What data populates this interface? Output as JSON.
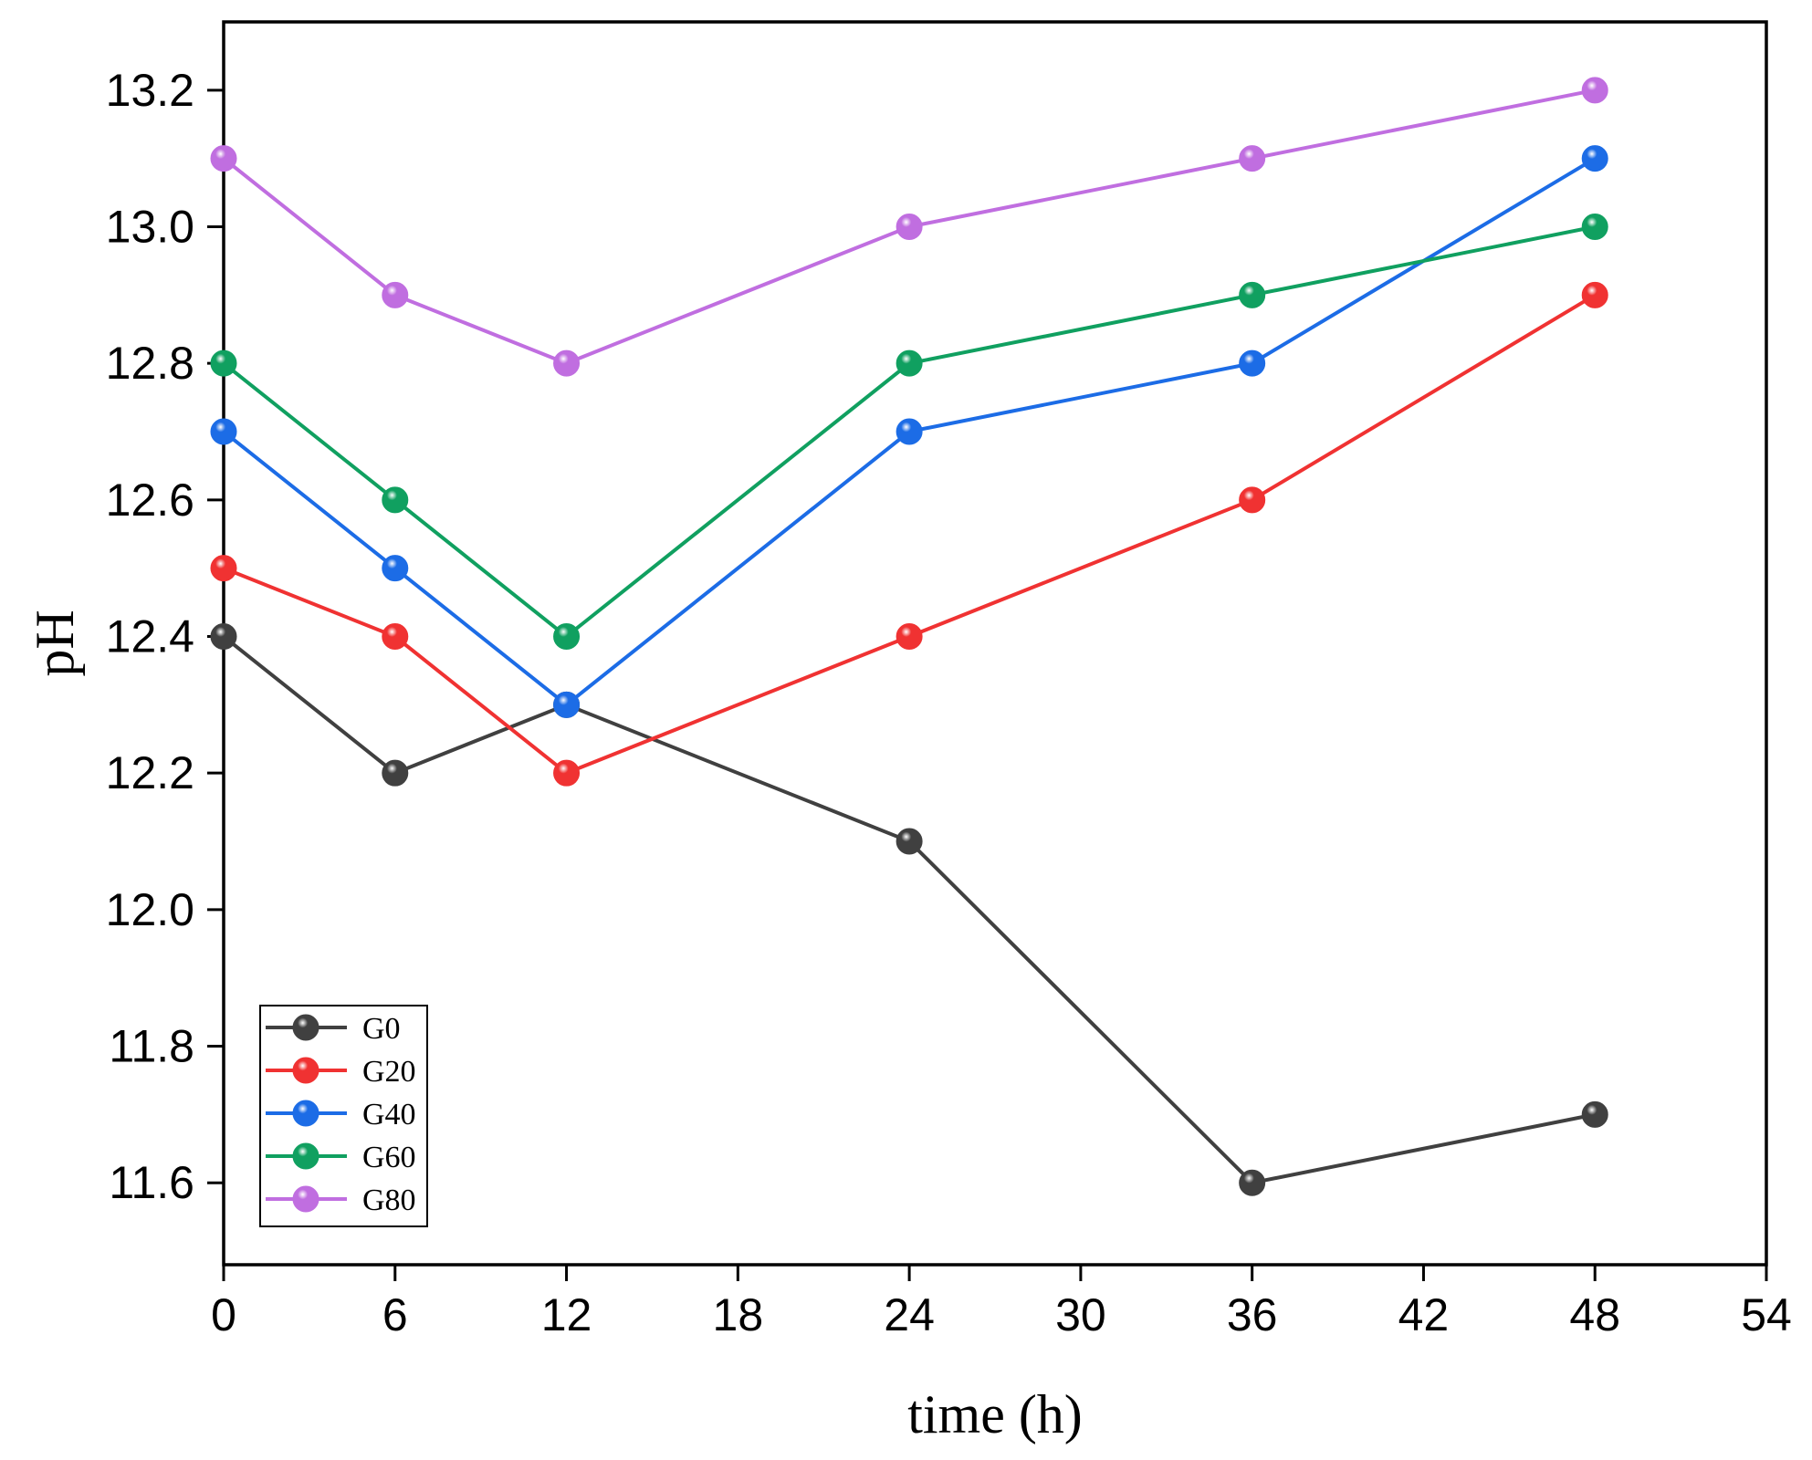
{
  "chart_data": {
    "type": "line",
    "title": "",
    "xlabel": "time (h)",
    "ylabel": "pH",
    "xlim": [
      0,
      54
    ],
    "ylim": [
      11.48,
      13.3
    ],
    "xticks": [
      0,
      6,
      12,
      18,
      24,
      30,
      36,
      42,
      48,
      54
    ],
    "yticks": [
      11.6,
      11.8,
      12.0,
      12.2,
      12.4,
      12.6,
      12.8,
      13.0,
      13.2
    ],
    "ytick_labels": [
      "11.6",
      "11.8",
      "12.0",
      "12.2",
      "12.4",
      "12.6",
      "12.8",
      "13.0",
      "13.2"
    ],
    "grid": false,
    "legend_position": "bottom-left",
    "x": [
      0,
      6,
      12,
      24,
      36,
      48
    ],
    "series": [
      {
        "name": "G0",
        "color": "#404040",
        "values": [
          12.4,
          12.2,
          12.3,
          12.1,
          11.6,
          11.7
        ]
      },
      {
        "name": "G20",
        "color": "#f03232",
        "values": [
          12.5,
          12.4,
          12.2,
          12.4,
          12.6,
          12.9
        ]
      },
      {
        "name": "G40",
        "color": "#1c6ce6",
        "values": [
          12.7,
          12.5,
          12.3,
          12.7,
          12.8,
          13.1
        ]
      },
      {
        "name": "G60",
        "color": "#10a060",
        "values": [
          12.8,
          12.6,
          12.4,
          12.8,
          12.9,
          13.0
        ]
      },
      {
        "name": "G80",
        "color": "#c06ee0",
        "values": [
          13.1,
          12.9,
          12.8,
          13.0,
          13.1,
          13.2
        ]
      }
    ]
  }
}
